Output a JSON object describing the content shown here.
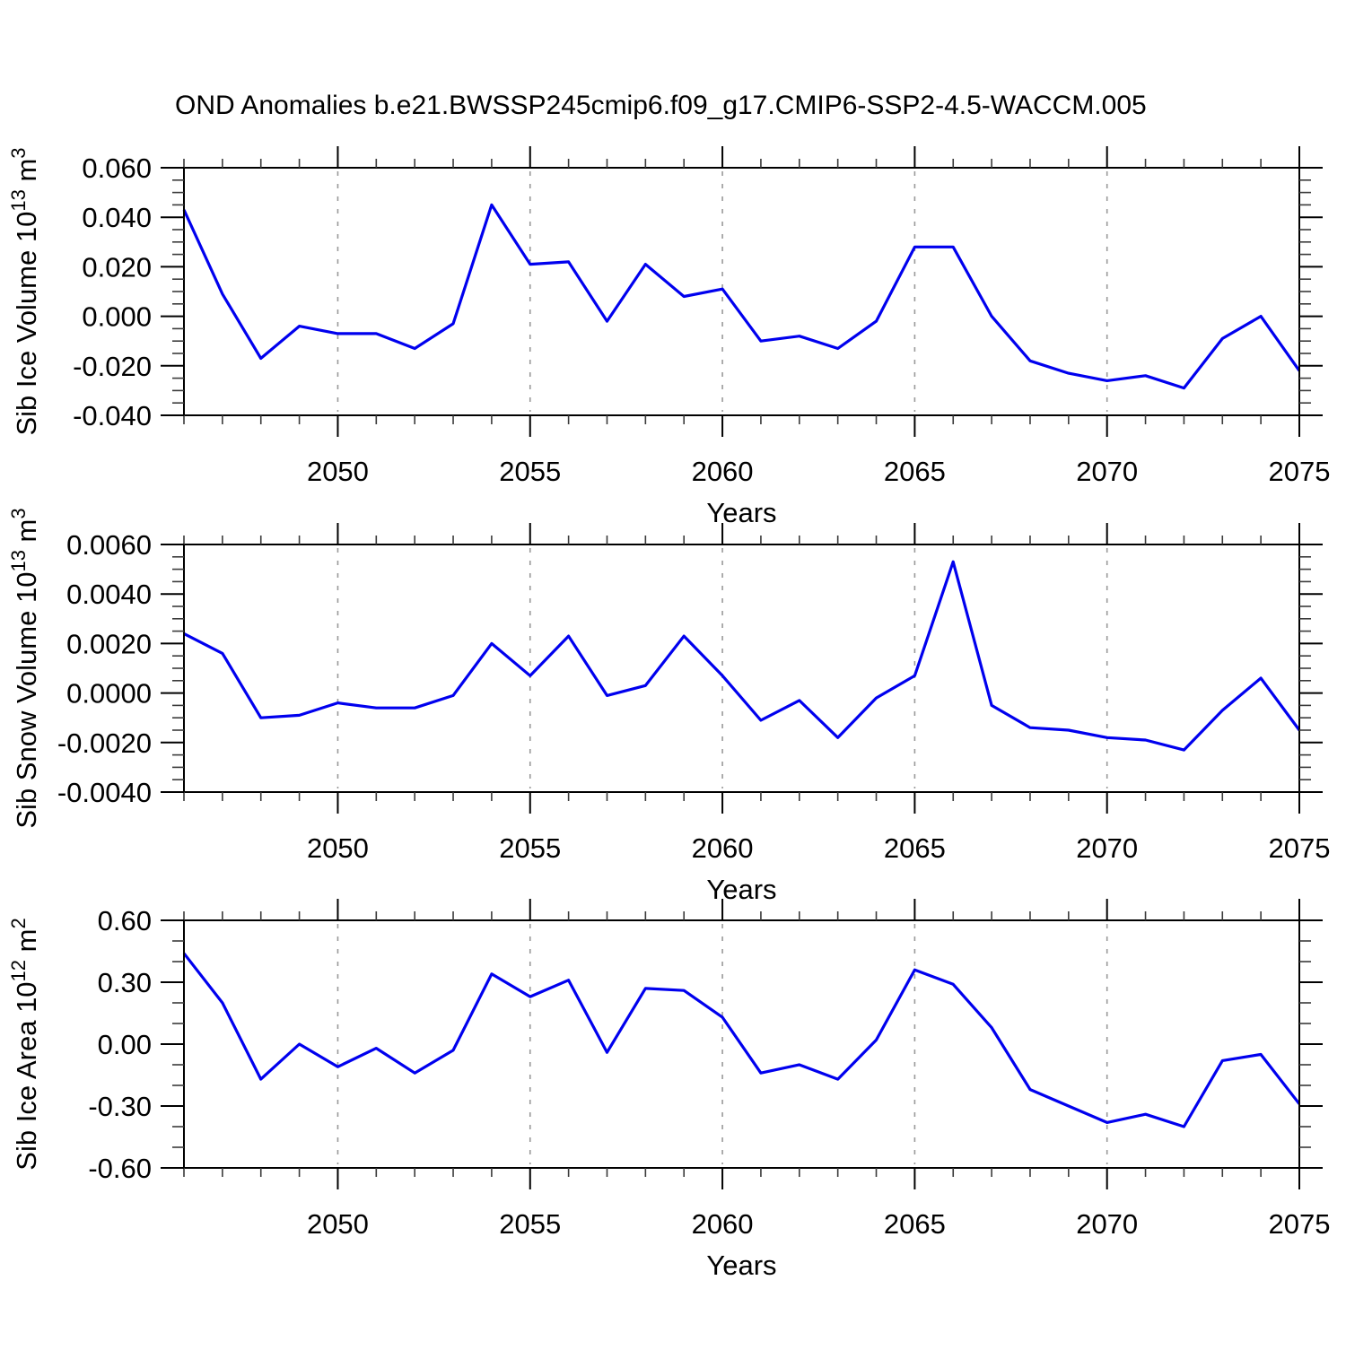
{
  "title": "OND Anomalies b.e21.BWSSP245cmip6.f09_g17.CMIP6-SSP2-4.5-WACCM.005",
  "chart_data": {
    "type": "line",
    "x": [
      2046,
      2047,
      2048,
      2049,
      2050,
      2051,
      2052,
      2053,
      2054,
      2055,
      2056,
      2057,
      2058,
      2059,
      2060,
      2061,
      2062,
      2063,
      2064,
      2065,
      2066,
      2067,
      2068,
      2069,
      2070,
      2071,
      2072,
      2073,
      2074,
      2075
    ],
    "xlabel": "Years",
    "xlim": [
      2046,
      2075
    ],
    "xticks": [
      2050,
      2055,
      2060,
      2065,
      2070,
      2075
    ],
    "xtick_labels": [
      "2050",
      "2055",
      "2060",
      "2065",
      "2070",
      "2075"
    ],
    "x_minor_step": 1,
    "x_gridlines": [
      2050,
      2055,
      2060,
      2065,
      2070
    ],
    "line_color": "#0000ee",
    "grid_on": true,
    "legend": "none",
    "panels": [
      {
        "name": "sib-ice-volume",
        "ylabel": "Sib Ice Volume 10^13 m^3",
        "ylabel_parts": [
          {
            "text": "Sib Ice Volume 10"
          },
          {
            "text": "13",
            "sup": true
          },
          {
            "text": " m"
          },
          {
            "text": "3",
            "sup": true
          }
        ],
        "ylim": [
          -0.04,
          0.06
        ],
        "ytick_values": [
          0.06,
          0.04,
          0.02,
          0.0,
          -0.02,
          -0.04
        ],
        "ytick_labels": [
          "0.060",
          "0.040",
          "0.020",
          "0.000",
          "-0.020",
          "-0.040"
        ],
        "y_minor_step": 0.005,
        "values": [
          0.043,
          0.009,
          -0.017,
          -0.004,
          -0.007,
          -0.007,
          -0.013,
          -0.003,
          0.045,
          0.021,
          0.022,
          -0.002,
          0.021,
          0.008,
          0.011,
          -0.01,
          -0.008,
          -0.013,
          -0.002,
          0.028,
          0.028,
          0.0,
          -0.018,
          -0.023,
          -0.026,
          -0.024,
          -0.029,
          -0.009,
          0.0,
          -0.022
        ]
      },
      {
        "name": "sib-snow-volume",
        "ylabel": "Sib Snow Volume 10^13 m^3",
        "ylabel_parts": [
          {
            "text": "Sib Snow Volume 10"
          },
          {
            "text": "13",
            "sup": true
          },
          {
            "text": " m"
          },
          {
            "text": "3",
            "sup": true
          }
        ],
        "ylim": [
          -0.004,
          0.006
        ],
        "ytick_values": [
          0.006,
          0.004,
          0.002,
          0.0,
          -0.002,
          -0.004
        ],
        "ytick_labels": [
          "0.0060",
          "0.0040",
          "0.0020",
          "0.0000",
          "-0.0020",
          "-0.0040"
        ],
        "y_minor_step": 0.0005,
        "values": [
          0.0024,
          0.0016,
          -0.001,
          -0.0009,
          -0.0004,
          -0.0006,
          -0.0006,
          -0.0001,
          0.002,
          0.0007,
          0.0023,
          -0.0001,
          0.0003,
          0.0023,
          0.0007,
          -0.0011,
          -0.0003,
          -0.0018,
          -0.0002,
          0.0007,
          0.0053,
          -0.0005,
          -0.0014,
          -0.0015,
          -0.0018,
          -0.0019,
          -0.0023,
          -0.0007,
          0.0006,
          -0.0015
        ]
      },
      {
        "name": "sib-ice-area",
        "ylabel": "Sib Ice Area 10^12 m^2",
        "ylabel_parts": [
          {
            "text": "Sib Ice Area 10"
          },
          {
            "text": "12",
            "sup": true
          },
          {
            "text": " m"
          },
          {
            "text": "2",
            "sup": true
          }
        ],
        "ylim": [
          -0.6,
          0.6
        ],
        "ytick_values": [
          0.6,
          0.3,
          0.0,
          -0.3,
          -0.6
        ],
        "ytick_labels": [
          "0.60",
          "0.30",
          "0.00",
          "-0.30",
          "-0.60"
        ],
        "y_minor_step": 0.1,
        "values": [
          0.44,
          0.2,
          -0.17,
          0.0,
          -0.11,
          -0.02,
          -0.14,
          -0.03,
          0.34,
          0.23,
          0.31,
          -0.04,
          0.27,
          0.26,
          0.13,
          -0.14,
          -0.1,
          -0.17,
          0.02,
          0.36,
          0.29,
          0.08,
          -0.22,
          -0.3,
          -0.38,
          -0.34,
          -0.4,
          -0.08,
          -0.05,
          -0.29
        ]
      }
    ]
  }
}
